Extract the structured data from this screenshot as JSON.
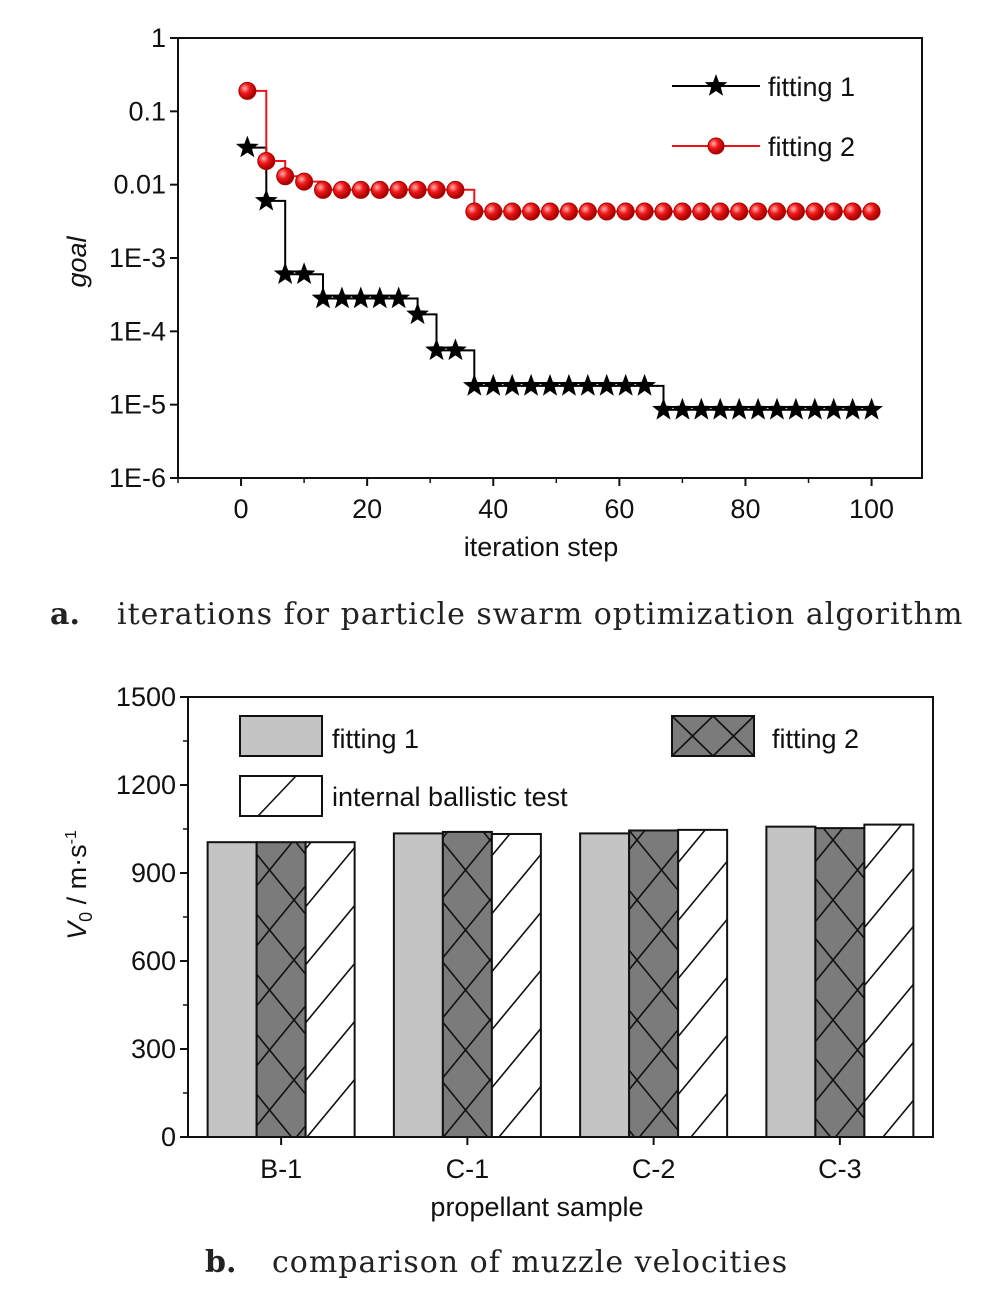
{
  "chart_data": [
    {
      "type": "line",
      "xlabel": "iteration step",
      "ylabel": "goal",
      "xlim": [
        -10,
        108
      ],
      "ylim": [
        1e-06,
        1
      ],
      "yscale": "log",
      "xticks": [
        0,
        20,
        40,
        60,
        80,
        100
      ],
      "yticks": [
        1e-06,
        1e-05,
        0.0001,
        0.001,
        0.01,
        0.1,
        1
      ],
      "ytick_labels": [
        "1E-6",
        "1E-5",
        "1E-4",
        "1E-3",
        "0.01",
        "0.1",
        "1"
      ],
      "legend_position": "top-right",
      "series": [
        {
          "name": "fitting 1",
          "color": "#000000",
          "marker": "star",
          "x": [
            1,
            4,
            7,
            10,
            13,
            16,
            19,
            22,
            25,
            28,
            31,
            34,
            37,
            40,
            43,
            46,
            49,
            52,
            55,
            58,
            61,
            64,
            67,
            70,
            73,
            76,
            79,
            82,
            85,
            88,
            91,
            94,
            97,
            100
          ],
          "y": [
            0.032,
            0.006,
            0.0006,
            0.0006,
            0.00028,
            0.00028,
            0.00028,
            0.00028,
            0.00028,
            0.00017,
            5.5e-05,
            5.5e-05,
            1.8e-05,
            1.8e-05,
            1.8e-05,
            1.8e-05,
            1.8e-05,
            1.8e-05,
            1.8e-05,
            1.8e-05,
            1.8e-05,
            1.8e-05,
            8.5e-06,
            8.5e-06,
            8.5e-06,
            8.5e-06,
            8.5e-06,
            8.5e-06,
            8.5e-06,
            8.5e-06,
            8.5e-06,
            8.5e-06,
            8.5e-06,
            8.5e-06
          ]
        },
        {
          "name": "fitting 2",
          "color": "#e8141c",
          "marker": "circle",
          "x": [
            1,
            4,
            7,
            10,
            13,
            16,
            19,
            22,
            25,
            28,
            31,
            34,
            37,
            40,
            43,
            46,
            49,
            52,
            55,
            58,
            61,
            64,
            67,
            70,
            73,
            76,
            79,
            82,
            85,
            88,
            91,
            94,
            97,
            100
          ],
          "y": [
            0.19,
            0.021,
            0.013,
            0.011,
            0.0085,
            0.0085,
            0.0085,
            0.0085,
            0.0085,
            0.0085,
            0.0085,
            0.0085,
            0.0043,
            0.0043,
            0.0043,
            0.0043,
            0.0043,
            0.0043,
            0.0043,
            0.0043,
            0.0043,
            0.0043,
            0.0043,
            0.0043,
            0.0043,
            0.0043,
            0.0043,
            0.0043,
            0.0043,
            0.0043,
            0.0043,
            0.0043,
            0.0043,
            0.0043
          ]
        }
      ]
    },
    {
      "type": "bar",
      "xlabel": "propellant sample",
      "ylabel": "V0 / m·s-1",
      "ylim": [
        0,
        1500
      ],
      "yticks": [
        0,
        300,
        600,
        900,
        1200,
        1500
      ],
      "categories": [
        "B-1",
        "C-1",
        "C-2",
        "C-3"
      ],
      "series": [
        {
          "name": "fitting 1",
          "fill": "#c4c4c4",
          "pattern": "solid",
          "values": [
            1005,
            1035,
            1035,
            1058
          ]
        },
        {
          "name": "fitting 2",
          "fill": "#7b7b7b",
          "pattern": "crosshatch",
          "values": [
            1005,
            1040,
            1045,
            1053
          ]
        },
        {
          "name": "internal ballistic test",
          "fill": "#ffffff",
          "pattern": "diagonal",
          "values": [
            1005,
            1033,
            1047,
            1065
          ]
        }
      ]
    }
  ],
  "captions": {
    "a_label": "a.",
    "a_text": "iterations for particle swarm optimization algorithm",
    "b_label": "b.",
    "b_text": "comparison of muzzle velocities"
  }
}
